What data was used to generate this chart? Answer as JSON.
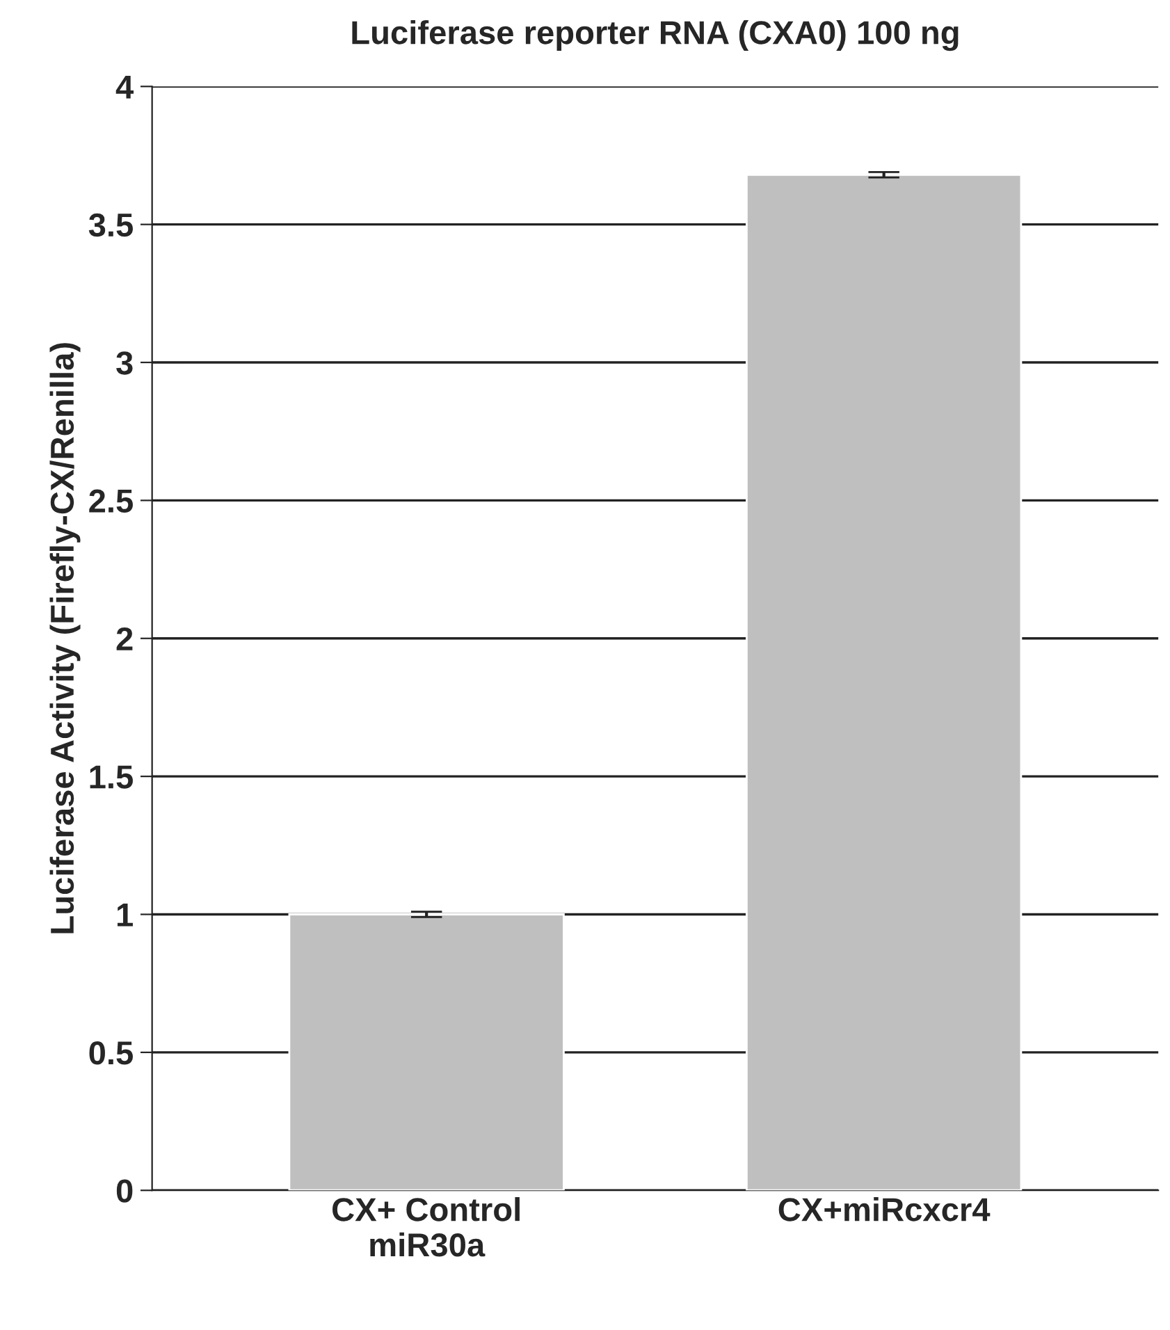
{
  "chart_data": {
    "type": "bar",
    "title": "Luciferase reporter RNA (CXA0) 100 ng",
    "ylabel": "Luciferase Activity (Firefly-CX/Renilla)",
    "categories": [
      "CX+ Control\nmiR30a",
      "CX+miRcxcr4"
    ],
    "values": [
      1.0,
      3.68
    ],
    "errors": [
      0.01,
      0.01
    ],
    "color": "#bfbfbf",
    "ylim": [
      0,
      4
    ],
    "yticks": [
      0,
      {
        "value": 0.5,
        "label": "0.5"
      },
      1,
      {
        "value": 1.5,
        "label": "1.5"
      },
      2,
      {
        "value": 2.5,
        "label": "2.5"
      },
      3,
      {
        "value": 3.5,
        "label": "3.5"
      },
      4
    ],
    "grid": "y",
    "legend": false
  }
}
